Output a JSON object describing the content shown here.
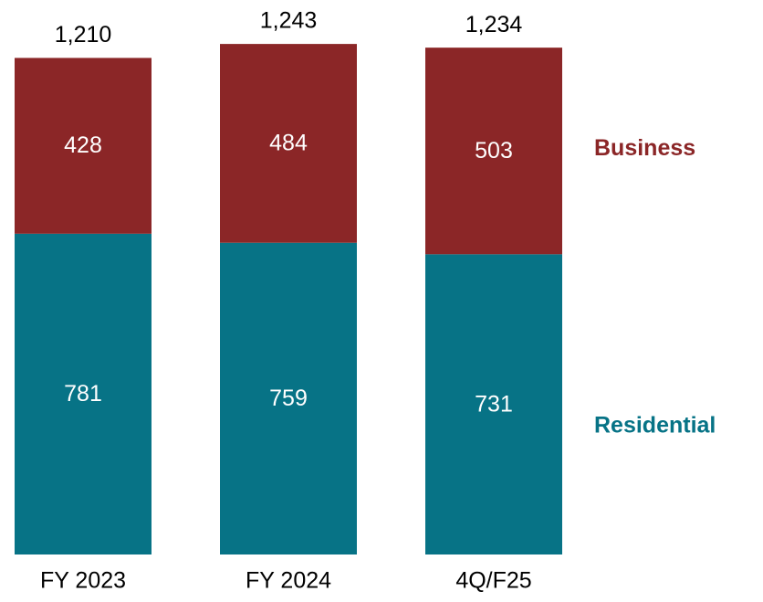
{
  "chart_data": {
    "type": "stacked_bar",
    "categories": [
      "FY 2023",
      "FY 2024",
      "4Q/F25"
    ],
    "series": [
      {
        "name": "Residential",
        "color": "#077386",
        "values": [
          781,
          759,
          731
        ]
      },
      {
        "name": "Business",
        "color": "#8b2627",
        "values": [
          428,
          484,
          503
        ]
      }
    ],
    "totals": [
      "1,210",
      "1,243",
      "1,234"
    ],
    "ylim": [
      0,
      1350
    ]
  }
}
